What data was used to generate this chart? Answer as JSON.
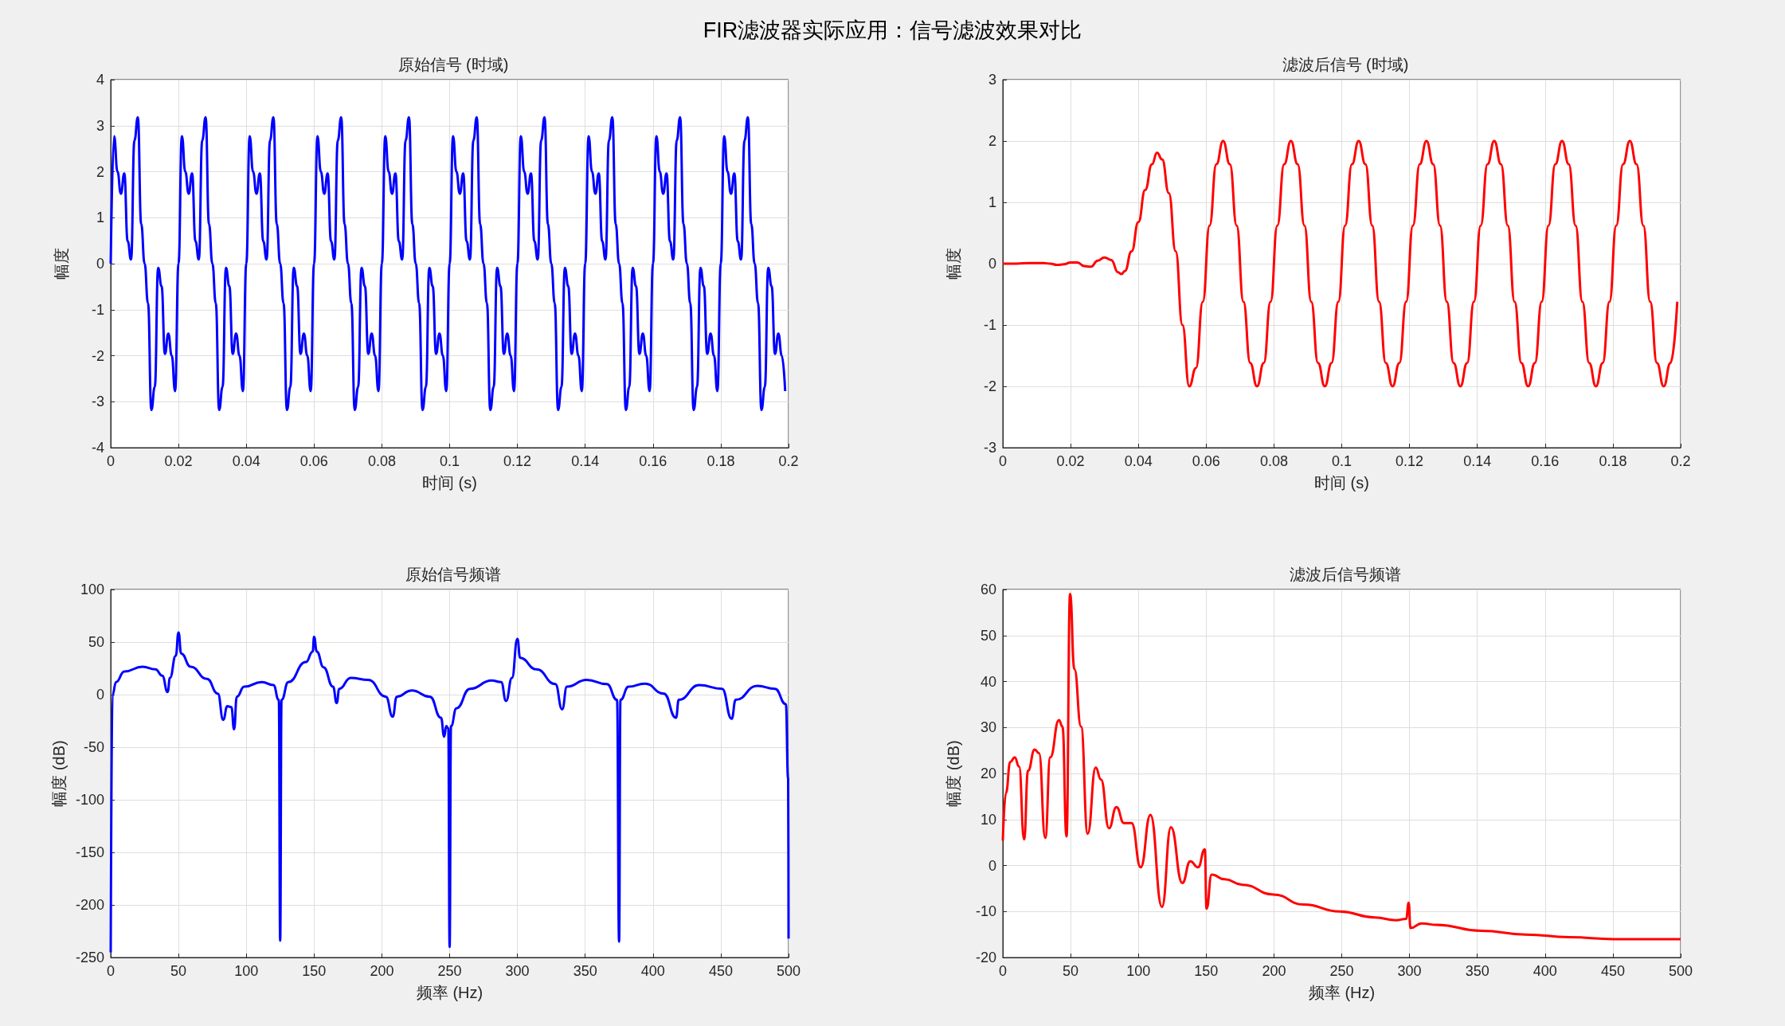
{
  "chart_data": [
    {
      "type": "line",
      "title": "原始信号 (时域)",
      "xlabel": "时间 (s)",
      "ylabel": "幅度",
      "annotations": [
        "FIR滤波器实际应用：信号滤波效果对比"
      ],
      "grid": true,
      "xlim": [
        0,
        0.2
      ],
      "xticks": [
        0,
        0.02,
        0.04,
        0.06,
        0.08,
        0.1,
        0.12,
        0.14,
        0.16,
        0.18,
        0.2
      ],
      "ylim": [
        -4,
        4
      ],
      "yticks": [
        -4,
        -3,
        -2,
        -1,
        0,
        1,
        2,
        3,
        4
      ],
      "series": [
        {
          "color": "#0000ff",
          "x": [
            0,
            0.001,
            0.002,
            0.003,
            0.004,
            0.005,
            0.006,
            0.007,
            0.008,
            0.009,
            0.01,
            0.011,
            0.012,
            0.013,
            0.014,
            0.015,
            0.016,
            0.017,
            0.018,
            0.019,
            0.02,
            0.021,
            0.022,
            0.023,
            0.024,
            0.025,
            0.026,
            0.027,
            0.028,
            0.029,
            0.03,
            0.031,
            0.032,
            0.033,
            0.034,
            0.035,
            0.036,
            0.037,
            0.038,
            0.039,
            0.04,
            0.041,
            0.042,
            0.043,
            0.044,
            0.045,
            0.046,
            0.047,
            0.048,
            0.049,
            0.05,
            0.051,
            0.052,
            0.053,
            0.054,
            0.055,
            0.056,
            0.057,
            0.058,
            0.059,
            0.06,
            0.061,
            0.062,
            0.063,
            0.064,
            0.065,
            0.066,
            0.067,
            0.068,
            0.069,
            0.07,
            0.071,
            0.072,
            0.073,
            0.074,
            0.075,
            0.076,
            0.077,
            0.078,
            0.079,
            0.08,
            0.081,
            0.082,
            0.083,
            0.084,
            0.085,
            0.086,
            0.087,
            0.088,
            0.089,
            0.09,
            0.091,
            0.092,
            0.093,
            0.094,
            0.095,
            0.096,
            0.097,
            0.098,
            0.099,
            0.1,
            0.101,
            0.102,
            0.103,
            0.104,
            0.105,
            0.106,
            0.107,
            0.108,
            0.109,
            0.11,
            0.111,
            0.112,
            0.113,
            0.114,
            0.115,
            0.116,
            0.117,
            0.118,
            0.119,
            0.12,
            0.121,
            0.122,
            0.123,
            0.124,
            0.125,
            0.126,
            0.127,
            0.128,
            0.129,
            0.13,
            0.131,
            0.132,
            0.133,
            0.134,
            0.135,
            0.136,
            0.137,
            0.138,
            0.139,
            0.14,
            0.141,
            0.142,
            0.143,
            0.144,
            0.145,
            0.146,
            0.147,
            0.148,
            0.149,
            0.15,
            0.151,
            0.152,
            0.153,
            0.154,
            0.155,
            0.156,
            0.157,
            0.158,
            0.159,
            0.16,
            0.161,
            0.162,
            0.163,
            0.164,
            0.165,
            0.166,
            0.167,
            0.168,
            0.169,
            0.17,
            0.171,
            0.172,
            0.173,
            0.174,
            0.175,
            0.176,
            0.177,
            0.178,
            0.179,
            0.18,
            0.181,
            0.182,
            0.183,
            0.184,
            0.185,
            0.186,
            0.187,
            0.188,
            0.189,
            0.19,
            0.191,
            0.192,
            0.193,
            0.194,
            0.195,
            0.196,
            0.197,
            0.198,
            0.199
          ],
          "values": [
            0,
            2.77,
            2,
            1.52,
            1.96,
            0.49,
            0.09,
            2.68,
            3.18,
            0.86,
            0,
            -0.86,
            -3.18,
            -2.68,
            -0.09,
            -0.49,
            -1.96,
            -1.52,
            -2,
            -2.77,
            0,
            2.77,
            2,
            1.52,
            1.96,
            0.49,
            0.09,
            2.68,
            3.18,
            0.86,
            0,
            -0.86,
            -3.18,
            -2.68,
            -0.09,
            -0.49,
            -1.96,
            -1.52,
            -2,
            -2.77,
            0,
            2.77,
            2,
            1.52,
            1.96,
            0.49,
            0.09,
            2.68,
            3.18,
            0.86,
            0,
            -0.86,
            -3.18,
            -2.68,
            -0.09,
            -0.49,
            -1.96,
            -1.52,
            -2,
            -2.77,
            0,
            2.77,
            2,
            1.52,
            1.96,
            0.49,
            0.09,
            2.68,
            3.18,
            0.86,
            0,
            -0.86,
            -3.18,
            -2.68,
            -0.09,
            -0.49,
            -1.96,
            -1.52,
            -2,
            -2.77,
            0,
            2.77,
            2,
            1.52,
            1.96,
            0.49,
            0.09,
            2.68,
            3.18,
            0.86,
            0,
            -0.86,
            -3.18,
            -2.68,
            -0.09,
            -0.49,
            -1.96,
            -1.52,
            -2,
            -2.77,
            0,
            2.77,
            2,
            1.52,
            1.96,
            0.49,
            0.09,
            2.68,
            3.18,
            0.86,
            0,
            -0.86,
            -3.18,
            -2.68,
            -0.09,
            -0.49,
            -1.96,
            -1.52,
            -2,
            -2.77,
            0,
            2.77,
            2,
            1.52,
            1.96,
            0.49,
            0.09,
            2.68,
            3.18,
            0.86,
            0,
            -0.86,
            -3.18,
            -2.68,
            -0.09,
            -0.49,
            -1.96,
            -1.52,
            -2,
            -2.77,
            0,
            2.77,
            2,
            1.52,
            1.96,
            0.49,
            0.09,
            2.68,
            3.18,
            0.86,
            0,
            -0.86,
            -3.18,
            -2.68,
            -0.09,
            -0.49,
            -1.96,
            -1.52,
            -2,
            -2.77,
            0,
            2.77,
            2,
            1.52,
            1.96,
            0.49,
            0.09,
            2.68,
            3.18,
            0.86,
            0,
            -0.86,
            -3.18,
            -2.68,
            -0.09,
            -0.49,
            -1.96,
            -1.52,
            -2,
            -2.77,
            0,
            2.77,
            2,
            1.52,
            1.96,
            0.49,
            0.09,
            2.68,
            3.18,
            0.86,
            0,
            -0.86,
            -3.18,
            -2.68,
            -0.09,
            -0.49,
            -1.96,
            -1.52,
            -2,
            -2.77
          ]
        }
      ]
    },
    {
      "type": "line",
      "title": "滤波后信号 (时域)",
      "xlabel": "时间 (s)",
      "ylabel": "幅度",
      "grid": true,
      "xlim": [
        0,
        0.2
      ],
      "xticks": [
        0,
        0.02,
        0.04,
        0.06,
        0.08,
        0.1,
        0.12,
        0.14,
        0.16,
        0.18,
        0.2
      ],
      "ylim": [
        -3,
        3
      ],
      "yticks": [
        -3,
        -2,
        -1,
        0,
        1,
        2,
        3
      ],
      "series": [
        {
          "color": "#ff0000",
          "x": [
            0,
            0.004,
            0.008,
            0.012,
            0.014,
            0.016,
            0.018,
            0.02,
            0.022,
            0.024,
            0.026,
            0.028,
            0.03,
            0.032,
            0.034,
            0.035,
            0.036,
            0.038,
            0.04,
            0.042,
            0.044,
            0.0455,
            0.047,
            0.049,
            0.051,
            0.053,
            0.055,
            0.057,
            0.059,
            0.061,
            0.063,
            0.065,
            0.067,
            0.069,
            0.071,
            0.073,
            0.075,
            0.077,
            0.079,
            0.081,
            0.083,
            0.085,
            0.087,
            0.089,
            0.091,
            0.093,
            0.095,
            0.097,
            0.099,
            0.101,
            0.103,
            0.105,
            0.107,
            0.109,
            0.111,
            0.113,
            0.115,
            0.117,
            0.119,
            0.121,
            0.123,
            0.125,
            0.127,
            0.129,
            0.131,
            0.133,
            0.135,
            0.137,
            0.139,
            0.141,
            0.143,
            0.145,
            0.147,
            0.149,
            0.151,
            0.153,
            0.155,
            0.157,
            0.159,
            0.161,
            0.163,
            0.165,
            0.167,
            0.169,
            0.171,
            0.173,
            0.175,
            0.177,
            0.179,
            0.181,
            0.183,
            0.185,
            0.187,
            0.189,
            0.191,
            0.193,
            0.195,
            0.197,
            0.199
          ],
          "values": [
            0,
            0,
            0.01,
            0.01,
            0,
            -0.02,
            -0.01,
            0.02,
            0.02,
            -0.04,
            -0.05,
            0.05,
            0.1,
            0.06,
            -0.14,
            -0.17,
            -0.12,
            0.2,
            0.68,
            1.2,
            1.62,
            1.81,
            1.7,
            1.15,
            0.2,
            -1,
            -2,
            -1.7,
            -0.62,
            0.62,
            1.62,
            2,
            1.62,
            0.62,
            -0.62,
            -1.62,
            -2,
            -1.62,
            -0.62,
            0.62,
            1.62,
            2,
            1.62,
            0.62,
            -0.62,
            -1.62,
            -2,
            -1.62,
            -0.62,
            0.62,
            1.62,
            2,
            1.62,
            0.62,
            -0.62,
            -1.62,
            -2,
            -1.62,
            -0.62,
            0.62,
            1.62,
            2,
            1.62,
            0.62,
            -0.62,
            -1.62,
            -2,
            -1.62,
            -0.62,
            0.62,
            1.62,
            2,
            1.62,
            0.62,
            -0.62,
            -1.62,
            -2,
            -1.62,
            -0.62,
            0.62,
            1.62,
            2,
            1.62,
            0.62,
            -0.62,
            -1.62,
            -2,
            -1.62,
            -0.62,
            0.62,
            1.62,
            2,
            1.62,
            0.62,
            -0.62,
            -1.62,
            -2,
            -1.62,
            -0.62
          ]
        }
      ]
    },
    {
      "type": "line",
      "title": "原始信号频谱",
      "xlabel": "频率 (Hz)",
      "ylabel": "幅度 (dB)",
      "grid": true,
      "xlim": [
        0,
        500
      ],
      "xticks": [
        0,
        50,
        100,
        150,
        200,
        250,
        300,
        350,
        400,
        450,
        500
      ],
      "ylim": [
        -250,
        100
      ],
      "yticks": [
        -250,
        -200,
        -150,
        -100,
        -50,
        0,
        50,
        100
      ],
      "series": [
        {
          "color": "#0000ff",
          "x": [
            0,
            1.3,
            4,
            10,
            23.5,
            33,
            38,
            42,
            43.7,
            48,
            50,
            52,
            59,
            71,
            79,
            83,
            86,
            89,
            91,
            93,
            98.5,
            111.5,
            120,
            124,
            125,
            126,
            131,
            144,
            149,
            150,
            152,
            157,
            164,
            166.7,
            168.6,
            177,
            190,
            203,
            208,
            211,
            222,
            235.5,
            243.6,
            246,
            247.5,
            249,
            250,
            251,
            255,
            265,
            281,
            288,
            291.6,
            296,
            300,
            302,
            314,
            328,
            333,
            336.5,
            351,
            366,
            373.5,
            375,
            376,
            382,
            394,
            408,
            417,
            419,
            434,
            451,
            458,
            461,
            477,
            490,
            498,
            499.7,
            500
          ],
          "values": [
            -245,
            0,
            12,
            22,
            26.5,
            24,
            18,
            2.5,
            16,
            37,
            59,
            39,
            26.5,
            15,
            1,
            -24,
            -11,
            -12,
            -33,
            -2,
            7.5,
            12,
            9,
            -5,
            -234,
            -5,
            12,
            31,
            41,
            55,
            41,
            26,
            7.5,
            -8,
            5.5,
            16,
            14,
            -2,
            -21,
            -2,
            4,
            -2,
            -22,
            -40,
            -30,
            -32,
            -240,
            -30,
            -13,
            5.5,
            13.4,
            12,
            -6,
            16,
            53,
            35,
            24,
            10,
            -14,
            7.5,
            14,
            10,
            -5,
            -235,
            -5,
            7.5,
            10.5,
            1,
            -22,
            -5,
            9,
            5.5,
            -23,
            -5,
            8.4,
            5.5,
            -9,
            -80,
            -232
          ]
        }
      ]
    },
    {
      "type": "line",
      "title": "滤波后信号频谱",
      "xlabel": "频率 (Hz)",
      "ylabel": "幅度 (dB)",
      "grid": true,
      "xlim": [
        0,
        500
      ],
      "xticks": [
        0,
        50,
        100,
        150,
        200,
        250,
        300,
        350,
        400,
        450,
        500
      ],
      "ylim": [
        -20,
        60
      ],
      "yticks": [
        -20,
        -10,
        0,
        10,
        20,
        30,
        40,
        50,
        60
      ],
      "series": [
        {
          "color": "#ff0000",
          "x": [
            0,
            2.3,
            5.5,
            8.8,
            12,
            15.7,
            18.6,
            23.5,
            26.7,
            31.3,
            35,
            41.4,
            44,
            47,
            49.6,
            52.8,
            57.7,
            62.6,
            68.5,
            72.4,
            78.3,
            83.8,
            89.4,
            95,
            101.7,
            108.9,
            117.4,
            124,
            132.4,
            138.3,
            144,
            149,
            150.3,
            154,
            163.7,
            176.8,
            199.6,
            222,
            248.5,
            274.6,
            290,
            297.5,
            299.4,
            300.7,
            309,
            320,
            353,
            385.5,
            418,
            450.7,
            500
          ],
          "values": [
            5.4,
            15.8,
            22.5,
            23.5,
            21.5,
            5.7,
            20.6,
            25.2,
            24.4,
            6,
            23.5,
            31.6,
            30.2,
            6.3,
            59,
            42.7,
            30.2,
            6.9,
            21.3,
            18.7,
            8.1,
            12.7,
            9.2,
            9.2,
            -0.4,
            11,
            -9,
            8.3,
            -3.8,
            0.9,
            -0.4,
            3.5,
            -9.4,
            -2,
            -3,
            -4.2,
            -6.3,
            -8.5,
            -10,
            -11.3,
            -11.9,
            -11.6,
            -8.1,
            -13.6,
            -12.6,
            -12.9,
            -14.2,
            -15,
            -15.6,
            -16,
            -16
          ]
        }
      ]
    }
  ]
}
